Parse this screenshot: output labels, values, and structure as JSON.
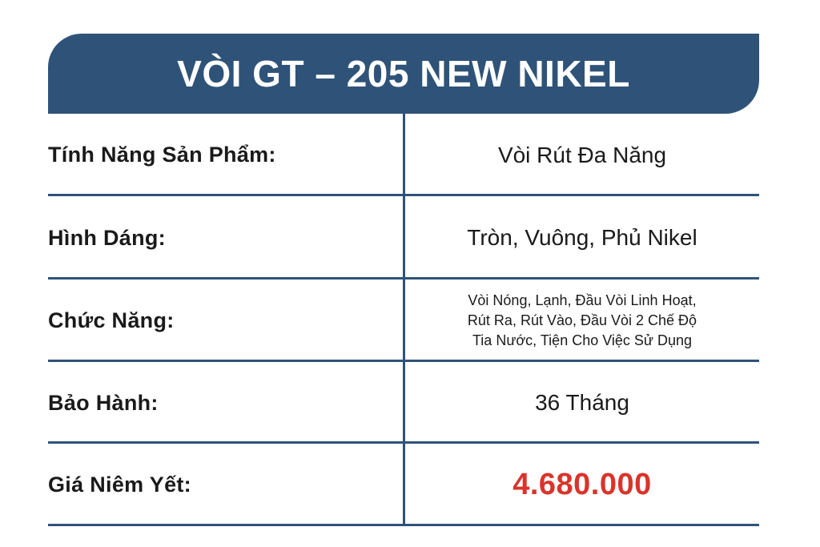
{
  "title": "VÒI GT – 205 NEW NIKEL",
  "colors": {
    "header": "#2f5378",
    "price": "#d9342b"
  },
  "rows": [
    {
      "label": "Tính Năng Sản Phẩm:",
      "value": "Vòi Rút Đa Năng"
    },
    {
      "label": "Hình Dáng:",
      "value": "Tròn, Vuông, Phủ Nikel"
    },
    {
      "label": "Chức Năng:",
      "lines": [
        "Vòi Nóng, Lạnh, Đầu Vòi Linh Hoạt,",
        "Rút Ra, Rút Vào, Đầu Vòi 2 Chế Độ",
        "Tia Nước, Tiện Cho Việc Sử Dụng"
      ]
    },
    {
      "label": "Bảo Hành:",
      "value": "36 Tháng"
    },
    {
      "label": "Giá Niêm Yết:",
      "value": "4.680.000"
    }
  ]
}
